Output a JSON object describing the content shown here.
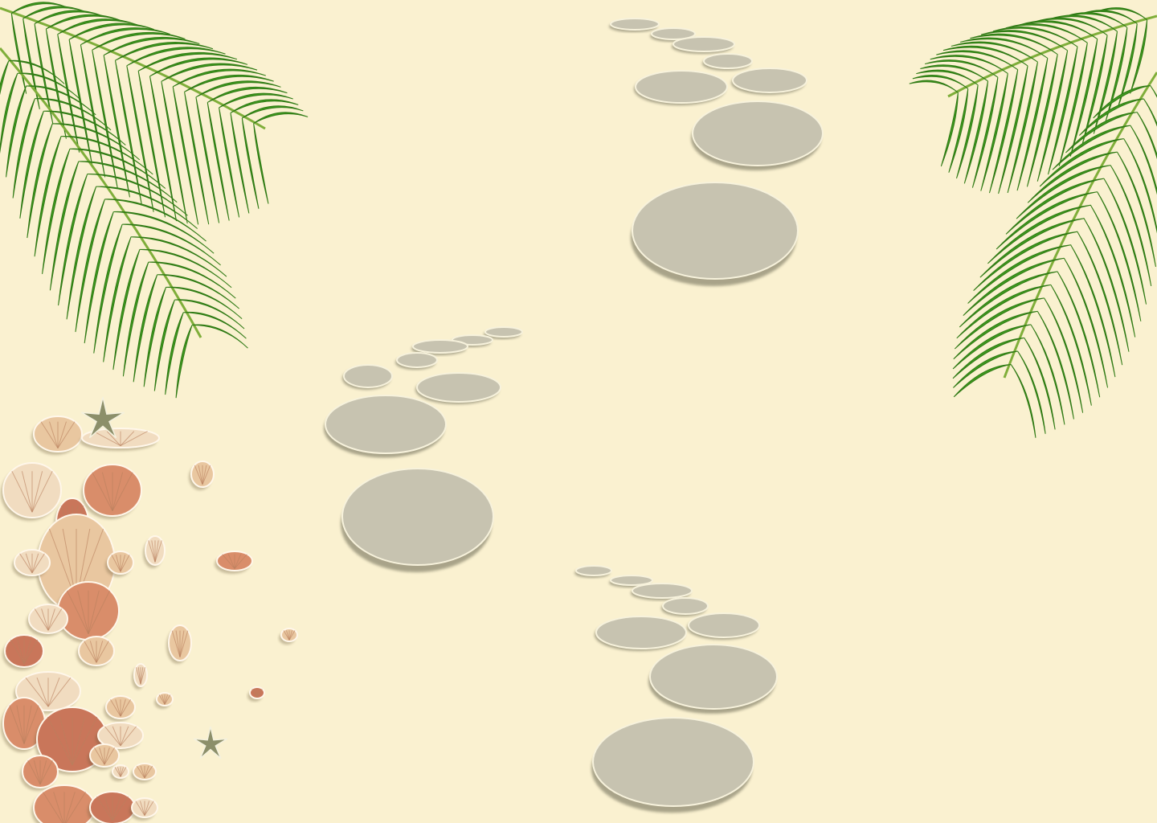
{
  "scene": {
    "background_color": "#faf1d0",
    "stone_color": "#c7c3b0",
    "stone_shadow_color": "#8e8a72",
    "leaf_color": "#3f9a1f",
    "shell_colors": [
      "#e9c7a0",
      "#d98d6a",
      "#f1dcc0",
      "#c9765a"
    ],
    "elements": [
      "palm-leaf-left",
      "palm-leaf-right",
      "stepping-stone-path",
      "seashell-pile",
      "starfish"
    ]
  }
}
